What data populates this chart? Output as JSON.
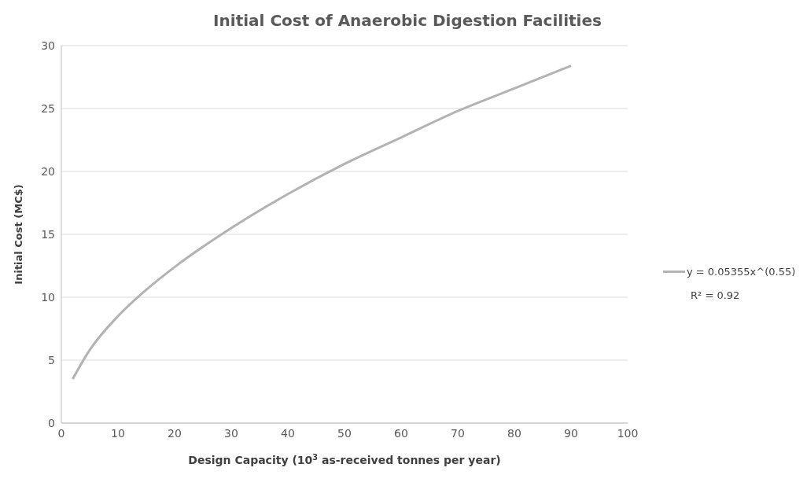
{
  "chart_data": {
    "type": "line",
    "title": "Initial Cost of Anaerobic Digestion Facilities",
    "xlabel": "Design Capacity (10$^{3}$ as-received tonnes per year)",
    "ylabel": "Initial Cost (MC$)",
    "x": [
      2,
      5,
      10,
      15,
      20,
      30,
      40,
      50,
      60,
      70,
      80,
      90
    ],
    "series": [
      {
        "name": "y = 0.05355x^(0.55)",
        "color": "#b3b3b3",
        "values": [
          3.5,
          5.8,
          8.5,
          10.6,
          12.4,
          15.5,
          18.2,
          20.6,
          22.7,
          24.8,
          26.6,
          28.4
        ]
      }
    ],
    "xlim": [
      0,
      100
    ],
    "xticks": [
      0,
      10,
      20,
      30,
      40,
      50,
      60,
      70,
      80,
      90,
      100
    ],
    "ylim": [
      0,
      30
    ],
    "yticks": [
      0,
      5,
      10,
      15,
      20,
      25,
      30
    ],
    "grid": "y",
    "legend": "right",
    "marker": "none",
    "line_style": "solid",
    "annotations": [
      "R² = 0.92"
    ]
  }
}
